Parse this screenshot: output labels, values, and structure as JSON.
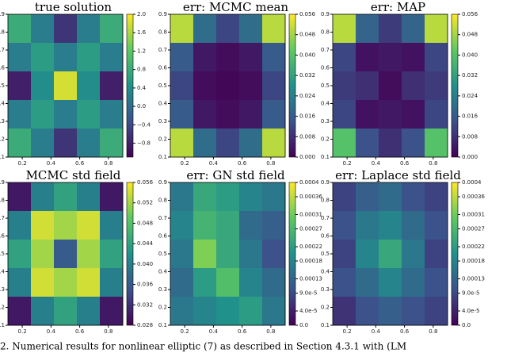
{
  "chart_data": [
    {
      "type": "contour",
      "title": "true solution",
      "colormap": "viridis",
      "x": [
        0.18,
        0.34,
        0.5,
        0.66,
        0.82
      ],
      "y": [
        0.82,
        0.66,
        0.5,
        0.34,
        0.18
      ],
      "z": [
        [
          0.8,
          0.2,
          -0.6,
          0.2,
          0.8
        ],
        [
          0.2,
          0.6,
          0.2,
          0.6,
          0.2
        ],
        [
          -0.8,
          0.4,
          1.8,
          0.4,
          -0.8
        ],
        [
          0.2,
          0.6,
          0.2,
          0.6,
          0.2
        ],
        [
          0.8,
          0.2,
          -0.6,
          0.2,
          0.8
        ]
      ],
      "xlim": [
        0.1,
        0.9
      ],
      "ylim": [
        0.1,
        0.9
      ],
      "xticks": [
        0.2,
        0.4,
        0.6,
        0.8
      ],
      "yticks": [
        0.1,
        0.2,
        0.3,
        0.4,
        0.5,
        0.6,
        0.7,
        0.8,
        0.9
      ],
      "clim": [
        -1.1,
        2.0
      ],
      "cticks": [
        {
          "value": -0.8,
          "label": "−0.8"
        },
        {
          "value": -0.4,
          "label": "−0.4"
        },
        {
          "value": 0,
          "label": "0.0"
        },
        0.4,
        0.8,
        1.2,
        1.6,
        {
          "value": 2,
          "label": "2.0"
        }
      ]
    },
    {
      "type": "contour",
      "title": "err: MCMC mean",
      "colormap": "viridis",
      "x": [
        0.18,
        0.34,
        0.5,
        0.66,
        0.82
      ],
      "y": [
        0.82,
        0.66,
        0.5,
        0.34,
        0.18
      ],
      "z": [
        [
          0.05,
          0.02,
          0.012,
          0.02,
          0.05
        ],
        [
          0.016,
          0.004,
          0.002,
          0.004,
          0.016
        ],
        [
          0.012,
          0.002,
          0.001,
          0.002,
          0.012
        ],
        [
          0.016,
          0.004,
          0.002,
          0.004,
          0.016
        ],
        [
          0.05,
          0.02,
          0.012,
          0.02,
          0.05
        ]
      ],
      "xlim": [
        0.1,
        0.9
      ],
      "ylim": [
        0.1,
        0.9
      ],
      "xticks": [
        0.2,
        0.4,
        0.6,
        0.8
      ],
      "yticks": [
        0.1,
        0.2,
        0.3,
        0.4,
        0.5,
        0.6,
        0.7,
        0.8,
        0.9
      ],
      "clim": [
        0,
        0.056
      ],
      "cticks": [
        {
          "value": 0,
          "label": "0.000"
        },
        {
          "value": 0.008,
          "label": "0.008"
        },
        {
          "value": 0.016,
          "label": "0.016"
        },
        {
          "value": 0.024,
          "label": "0.024"
        },
        {
          "value": 0.032,
          "label": "0.032"
        },
        {
          "value": 0.04,
          "label": "0.040"
        },
        {
          "value": 0.048,
          "label": "0.048"
        },
        {
          "value": 0.056,
          "label": "0.056"
        }
      ]
    },
    {
      "type": "contour",
      "title": "err: MAP",
      "colormap": "viridis",
      "x": [
        0.18,
        0.34,
        0.5,
        0.66,
        0.82
      ],
      "y": [
        0.82,
        0.66,
        0.5,
        0.34,
        0.18
      ],
      "z": [
        [
          0.05,
          0.018,
          0.01,
          0.018,
          0.05
        ],
        [
          0.012,
          0.003,
          0.004,
          0.003,
          0.012
        ],
        [
          0.01,
          0.008,
          0.002,
          0.008,
          0.01
        ],
        [
          0.012,
          0.003,
          0.004,
          0.003,
          0.012
        ],
        [
          0.04,
          0.014,
          0.008,
          0.014,
          0.04
        ]
      ],
      "xlim": [
        0.1,
        0.9
      ],
      "ylim": [
        0.1,
        0.9
      ],
      "xticks": [
        0.2,
        0.4,
        0.6,
        0.8
      ],
      "yticks": [
        0.1,
        0.2,
        0.3,
        0.4,
        0.5,
        0.6,
        0.7,
        0.8,
        0.9
      ],
      "clim": [
        0,
        0.056
      ],
      "cticks": [
        {
          "value": 0,
          "label": "0.000"
        },
        {
          "value": 0.008,
          "label": "0.008"
        },
        {
          "value": 0.016,
          "label": "0.016"
        },
        {
          "value": 0.024,
          "label": "0.024"
        },
        {
          "value": 0.032,
          "label": "0.032"
        },
        {
          "value": 0.04,
          "label": "0.040"
        },
        {
          "value": 0.048,
          "label": "0.048"
        },
        {
          "value": 0.056,
          "label": "0.056"
        }
      ]
    },
    {
      "type": "contour",
      "title": "MCMC std field",
      "colormap": "viridis",
      "x": [
        0.18,
        0.34,
        0.5,
        0.66,
        0.82
      ],
      "y": [
        0.82,
        0.66,
        0.5,
        0.34,
        0.18
      ],
      "z": [
        [
          0.03,
          0.04,
          0.044,
          0.04,
          0.03
        ],
        [
          0.04,
          0.054,
          0.052,
          0.054,
          0.04
        ],
        [
          0.044,
          0.052,
          0.036,
          0.052,
          0.044
        ],
        [
          0.04,
          0.054,
          0.052,
          0.054,
          0.04
        ],
        [
          0.03,
          0.04,
          0.044,
          0.04,
          0.03
        ]
      ],
      "xlim": [
        0.1,
        0.9
      ],
      "ylim": [
        0.1,
        0.9
      ],
      "xticks": [
        0.2,
        0.4,
        0.6,
        0.8
      ],
      "yticks": [
        0.1,
        0.2,
        0.3,
        0.4,
        0.5,
        0.6,
        0.7,
        0.8,
        0.9
      ],
      "clim": [
        0.028,
        0.056
      ],
      "cticks": [
        {
          "value": 0.028,
          "label": "0.028"
        },
        {
          "value": 0.032,
          "label": "0.032"
        },
        {
          "value": 0.036,
          "label": "0.036"
        },
        {
          "value": 0.04,
          "label": "0.040"
        },
        {
          "value": 0.044,
          "label": "0.044"
        },
        {
          "value": 0.048,
          "label": "0.048"
        },
        {
          "value": 0.052,
          "label": "0.052"
        },
        {
          "value": 0.056,
          "label": "0.056"
        }
      ]
    },
    {
      "type": "contour",
      "title": "err: GN std field",
      "colormap": "viridis",
      "x": [
        0.18,
        0.34,
        0.5,
        0.66,
        0.82
      ],
      "y": [
        0.82,
        0.66,
        0.5,
        0.34,
        0.18
      ],
      "z": [
        [
          0.00016,
          0.00024,
          0.00022,
          0.00018,
          0.00016
        ],
        [
          0.00018,
          0.00026,
          0.00024,
          0.00014,
          0.00012
        ],
        [
          0.00016,
          0.00032,
          0.00024,
          0.00016,
          0.0001
        ],
        [
          0.00014,
          0.00022,
          0.00028,
          0.00018,
          0.00014
        ],
        [
          0.00016,
          0.00018,
          0.0002,
          0.00022,
          0.00016
        ]
      ],
      "xlim": [
        0.1,
        0.9
      ],
      "ylim": [
        0.1,
        0.9
      ],
      "xticks": [
        0.2,
        0.4,
        0.6,
        0.8
      ],
      "yticks": [
        0.1,
        0.2,
        0.3,
        0.4,
        0.5,
        0.6,
        0.7,
        0.8,
        0.9
      ],
      "clim": [
        0,
        0.0004
      ],
      "cticks": [
        {
          "value": 0,
          "label": "0.0"
        },
        {
          "value": 4e-05,
          "label": "4.0e-5"
        },
        {
          "value": 9e-05,
          "label": "9.0e-5"
        },
        0.00013,
        0.00018,
        0.00022,
        0.00027,
        0.00031,
        0.00036,
        0.0004
      ]
    },
    {
      "type": "contour",
      "title": "err: Laplace std field",
      "colormap": "viridis",
      "x": [
        0.18,
        0.34,
        0.5,
        0.66,
        0.82
      ],
      "y": [
        0.82,
        0.66,
        0.5,
        0.34,
        0.18
      ],
      "z": [
        [
          8e-05,
          0.00012,
          0.00014,
          0.0001,
          8e-05
        ],
        [
          0.0001,
          0.00016,
          0.00018,
          0.00014,
          0.0001
        ],
        [
          8e-05,
          0.00018,
          0.00024,
          0.00016,
          8e-05
        ],
        [
          0.0001,
          0.00014,
          0.00018,
          0.00014,
          0.0001
        ],
        [
          6e-05,
          0.0001,
          0.00012,
          0.0001,
          8e-05
        ]
      ],
      "xlim": [
        0.1,
        0.9
      ],
      "ylim": [
        0.1,
        0.9
      ],
      "xticks": [
        0.2,
        0.4,
        0.6,
        0.8
      ],
      "yticks": [
        0.1,
        0.2,
        0.3,
        0.4,
        0.5,
        0.6,
        0.7,
        0.8,
        0.9
      ],
      "clim": [
        0,
        0.0004
      ],
      "cticks": [
        {
          "value": 0,
          "label": "0.0"
        },
        {
          "value": 4e-05,
          "label": "4.0e-5"
        },
        {
          "value": 9e-05,
          "label": "9.0e-5"
        },
        0.00013,
        0.00018,
        0.00022,
        0.00027,
        0.00031,
        0.00036,
        0.0004
      ]
    }
  ],
  "caption": "2. Numerical results for nonlinear elliptic (7) as described in Section 4.3.1 with (LM"
}
